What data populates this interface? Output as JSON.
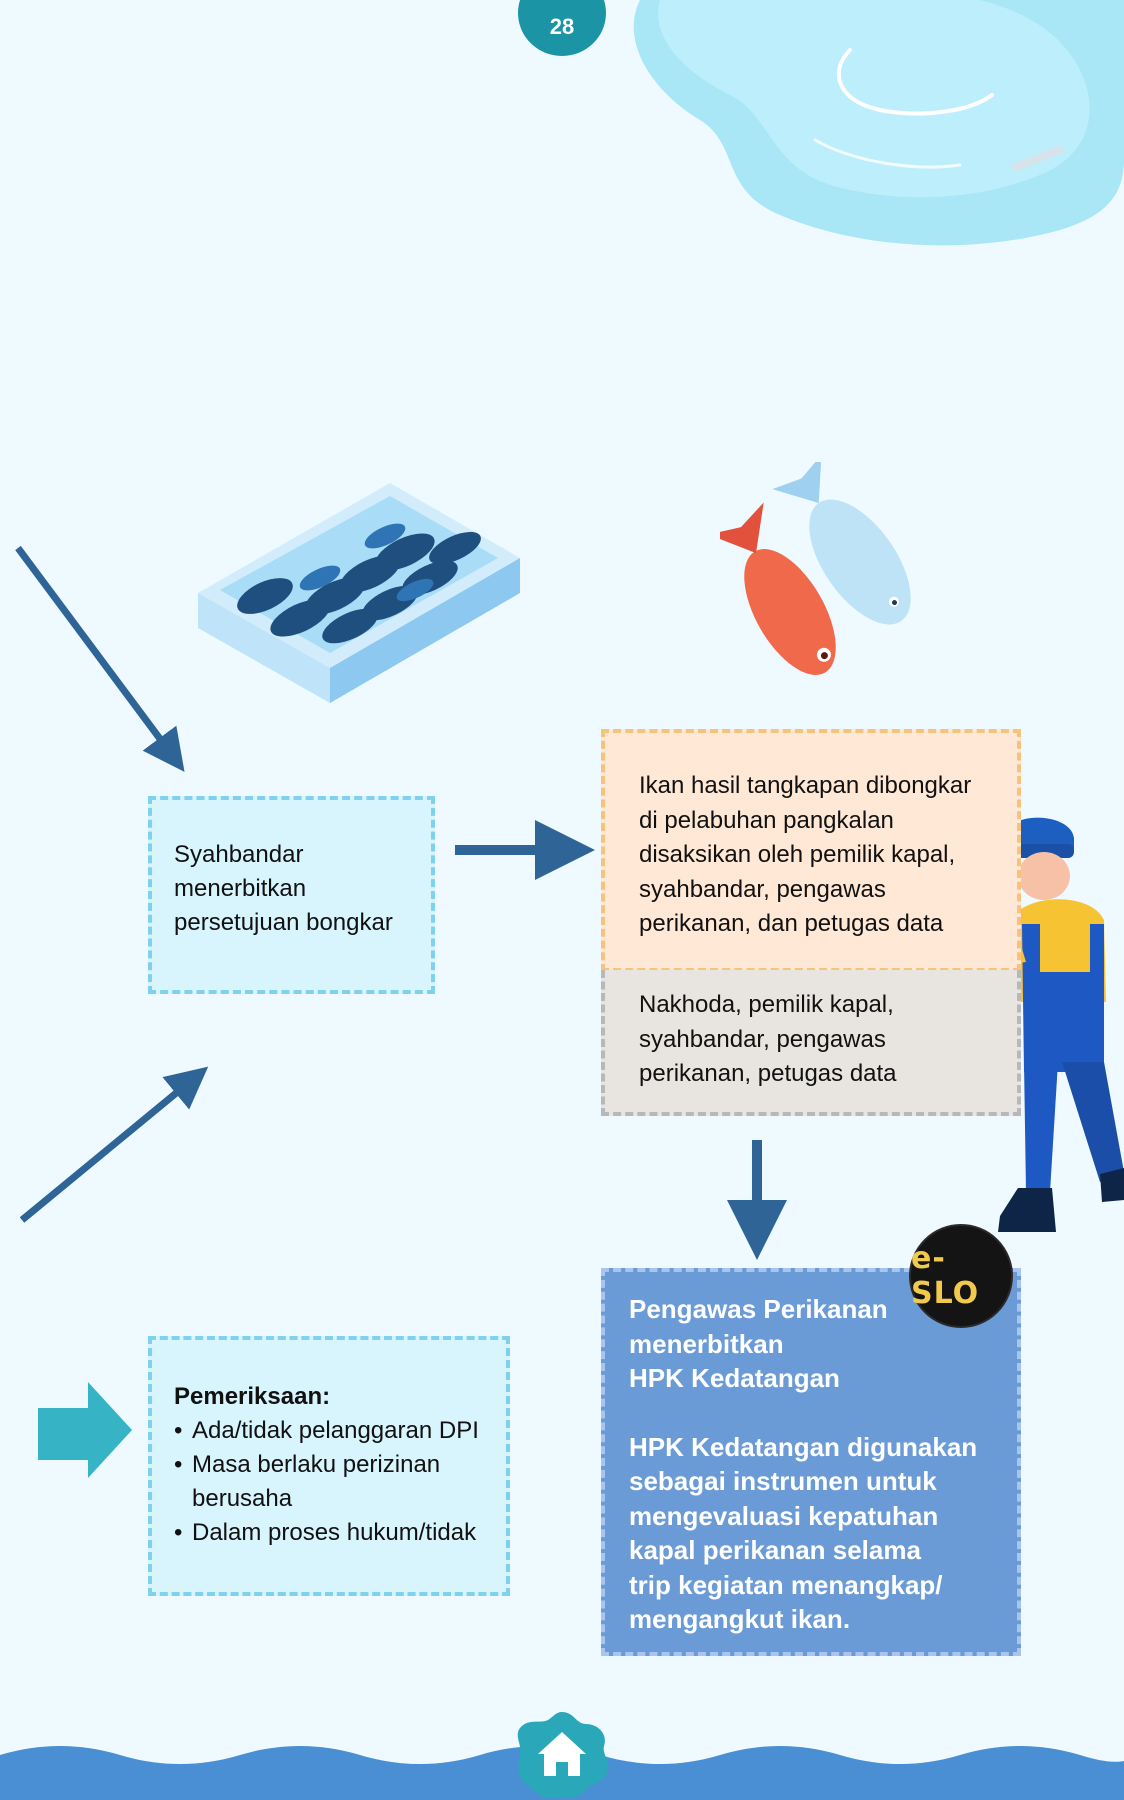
{
  "page": {
    "number": "28"
  },
  "colors": {
    "background": "#eefaff",
    "arrow": "#2e6596",
    "badge": "#1b95a5",
    "hpk_box": "#6a9bd6",
    "eslo_text": "#f1c94b"
  },
  "icons": [
    "water-puddle-icon",
    "fish-crate-icon",
    "fish-pair-icon",
    "fisheries-worker-icon",
    "home-icon"
  ],
  "steps": {
    "permit": {
      "lines": [
        "Syahbandar",
        "menerbitkan",
        "persetujuan bongkar"
      ]
    },
    "unloading": {
      "lines": [
        "Ikan hasil tangkapan dibongkar",
        "di pelabuhan pangkalan",
        "disaksikan oleh pemilik kapal,",
        "syahbandar, pengawas",
        "perikanan, dan petugas data"
      ]
    },
    "witnesses": {
      "lines": [
        "Nakhoda, pemilik kapal,",
        "syahbandar, pengawas",
        "perikanan, petugas data"
      ]
    },
    "hpk": {
      "heading_lines": [
        "Pengawas Perikanan",
        "menerbitkan",
        "HPK Kedatangan"
      ],
      "body_lines": [
        "HPK Kedatangan digunakan",
        "sebagai instrumen untuk",
        "mengevaluasi kepatuhan",
        "kapal perikanan selama",
        "trip kegiatan menangkap/",
        "mengangkut ikan."
      ]
    },
    "inspection": {
      "title": "Pemeriksaan:",
      "items": [
        "Ada/tidak pelanggaran DPI",
        "Masa berlaku perizinan berusaha",
        "Dalam proses hukum/tidak"
      ]
    }
  },
  "logo": {
    "text": "e-SLO"
  }
}
